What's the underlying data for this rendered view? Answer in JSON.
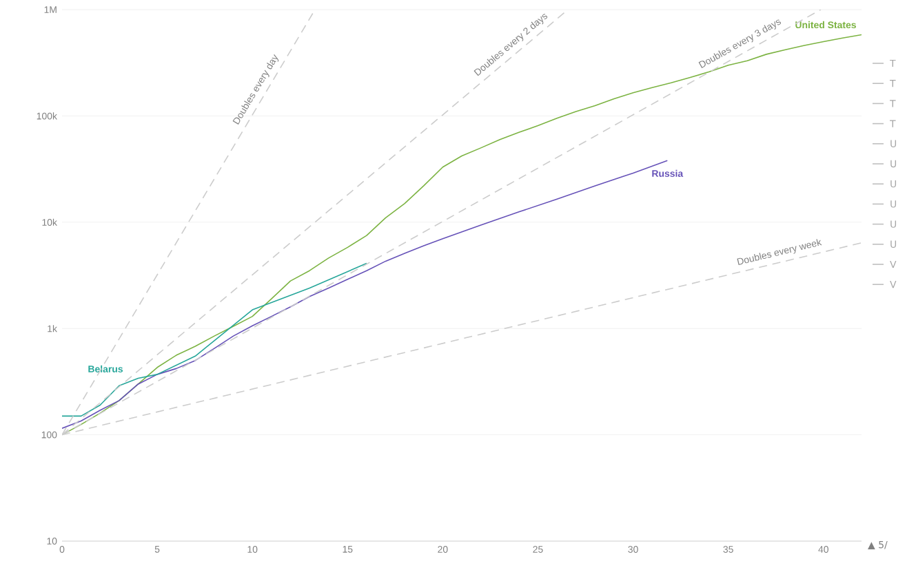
{
  "chart_data": {
    "type": "line",
    "log": "y",
    "grid": "y",
    "xlim": [
      0,
      42
    ],
    "ylim": [
      10,
      1000000
    ],
    "xticks": [
      0,
      5,
      10,
      15,
      20,
      25,
      30,
      35,
      40
    ],
    "yticks": [
      10,
      100,
      {
        "value": 1000,
        "label": "1k"
      },
      {
        "value": 10000,
        "label": "10k"
      },
      {
        "value": 100000,
        "label": "100k"
      },
      {
        "value": 1000000,
        "label": "1M"
      }
    ],
    "series": [
      {
        "name": "United States",
        "color": "#7cb342",
        "x": [
          0,
          1,
          2,
          3,
          4,
          5,
          6,
          7,
          8,
          9,
          10,
          11,
          12,
          13,
          14,
          15,
          16,
          17,
          18,
          19,
          20,
          21,
          22,
          23,
          24,
          25,
          26,
          27,
          28,
          29,
          30,
          31,
          32,
          33,
          34,
          35,
          36,
          37,
          38,
          39,
          40,
          41,
          42
        ],
        "values": [
          100,
          125,
          160,
          210,
          300,
          430,
          560,
          680,
          850,
          1050,
          1300,
          1900,
          2800,
          3500,
          4600,
          5800,
          7500,
          11000,
          15000,
          22000,
          33000,
          42000,
          50000,
          60000,
          70000,
          81000,
          95000,
          110000,
          125000,
          145000,
          165000,
          185000,
          205000,
          230000,
          260000,
          300000,
          330000,
          380000,
          420000,
          460000,
          500000,
          540000,
          580000
        ]
      },
      {
        "name": "Russia",
        "color": "#6652b8",
        "x": [
          0,
          1,
          2,
          3,
          4,
          5,
          6,
          7,
          8,
          9,
          10,
          11,
          12,
          13,
          14,
          15,
          16,
          17,
          18,
          19,
          20,
          22,
          24,
          26,
          28,
          30,
          31.8
        ],
        "values": [
          115,
          135,
          170,
          210,
          300,
          370,
          420,
          500,
          650,
          850,
          1060,
          1300,
          1600,
          2000,
          2400,
          2900,
          3500,
          4300,
          5100,
          6000,
          7000,
          9400,
          12500,
          16500,
          22000,
          29000,
          38000
        ]
      },
      {
        "name": "Belarus",
        "color": "#26a69a",
        "x": [
          0,
          1,
          2,
          3,
          4,
          5,
          7,
          10,
          13,
          16
        ],
        "values": [
          150,
          150,
          190,
          290,
          340,
          370,
          550,
          1500,
          2400,
          4100
        ]
      },
      {
        "name": "Doubles every day",
        "color": "#cccccc",
        "line_style": "dashed",
        "x": [
          0,
          13.29
        ],
        "values": [
          100,
          1000000
        ]
      },
      {
        "name": "Doubles every 2 days",
        "color": "#cccccc",
        "line_style": "dashed",
        "x": [
          0,
          26.58
        ],
        "values": [
          100,
          1000000
        ]
      },
      {
        "name": "Doubles every 3 days",
        "color": "#cccccc",
        "line_style": "dashed",
        "x": [
          0,
          39.86
        ],
        "values": [
          100,
          1000000
        ]
      },
      {
        "name": "Doubles every week",
        "color": "#cccccc",
        "line_style": "dashed",
        "x": [
          0,
          42
        ],
        "values": [
          100,
          6400
        ]
      }
    ],
    "annotations": [
      "T",
      "T",
      "T",
      "T",
      "U",
      "U",
      "U",
      "U",
      "U",
      "U",
      "V",
      "V",
      "▲ 5/"
    ]
  }
}
